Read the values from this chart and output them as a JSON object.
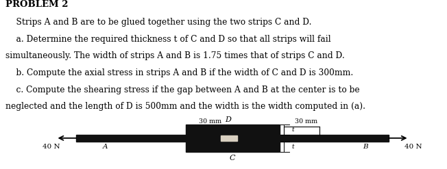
{
  "title": "PROBLEM 2",
  "lines": [
    "    Strips A and B are to be glued together using the two strips C and D.",
    "    a. Determine the required thickness t of C and D so that all strips will fail",
    "simultaneously. The width of strips A and B is 1.75 times that of strips C and D.",
    "    b. Compute the axial stress in strips A and B if the width of C and D is 300mm.",
    "    c. Compute the shearing stress if the gap between A and B at the center is to be",
    "neglected and the length of D is 500mm and the width is the width computed in (a)."
  ],
  "bg_color": "#ffffff",
  "text_color": "#000000",
  "title_fontsize": 9.5,
  "body_fontsize": 8.8,
  "diagram": {
    "force_label": "40 N",
    "label_A": "A",
    "label_B": "B",
    "label_C": "C",
    "label_D": "D",
    "dim_label_left": "30 mm",
    "dim_label_right": "30 mm",
    "dim_t": "t",
    "bar_color": "#111111",
    "hole_color": "#d8cfc0"
  }
}
